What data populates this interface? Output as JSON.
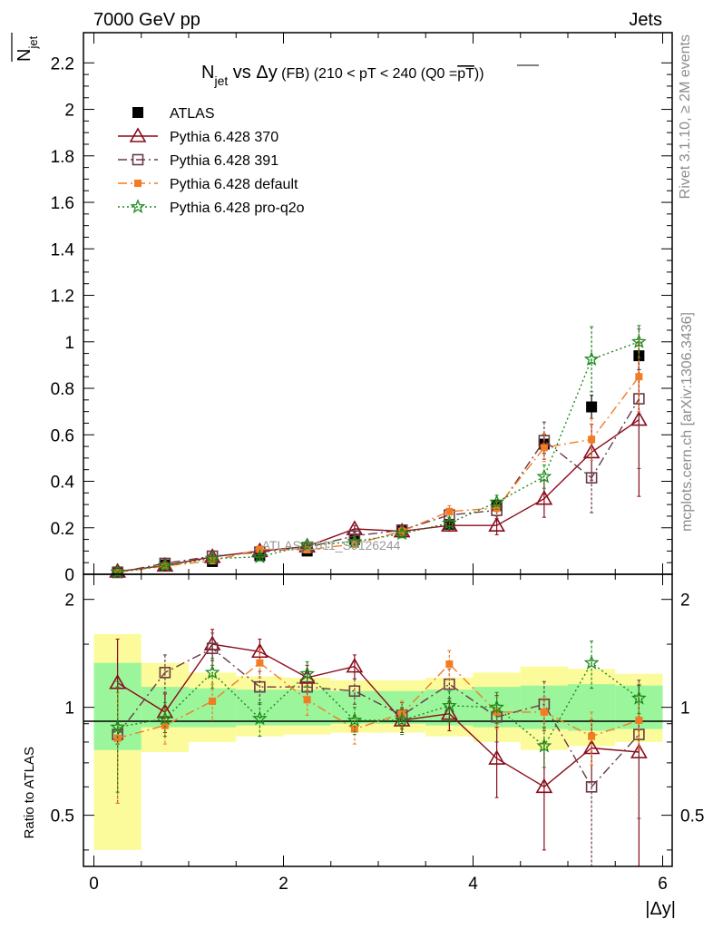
{
  "header": {
    "left": "7000 GeV pp",
    "right": "Jets"
  },
  "side_labels": {
    "rivet": "Rivet 3.1.10, ≥ 2M events",
    "mcplots": "mcplots.cern.ch [arXiv:1306.3436]"
  },
  "watermark": "ATLAS_2011_S9126244",
  "colors": {
    "ATLAS": "#000000",
    "p370": "#8b0a1c",
    "p391": "#6b3a46",
    "pdefault": "#f37b22",
    "pq2o": "#1a8a1a",
    "band_inner": "#9bf59b",
    "band_outer": "#fbfb9b"
  },
  "chart_data": [
    {
      "type": "scatter",
      "title": "N_jet vs Δy (FB) (210 < pT < 240 (Q0 = pT))",
      "ylabel": "N̄_jet",
      "xlabel": "|Δy|",
      "xlim": [
        0,
        6
      ],
      "ylim": [
        0,
        2.33
      ],
      "yticks": [
        0,
        0.2,
        0.4,
        0.6,
        0.8,
        1,
        1.2,
        1.4,
        1.6,
        1.8,
        2,
        2.2
      ],
      "yticklabels": [
        "0",
        "0.2",
        "0.4",
        "0.6",
        "0.8",
        "1",
        "1.2",
        "1.4",
        "1.6",
        "1.8",
        "2",
        "2.2"
      ],
      "legend_position": "top-left",
      "x": [
        0.25,
        0.75,
        1.25,
        1.75,
        2.25,
        2.75,
        3.25,
        3.75,
        4.25,
        4.75,
        5.25,
        5.75
      ],
      "series": [
        {
          "name": "ATLAS",
          "key": "ATLAS",
          "marker": "filled-square",
          "values": [
            0.01,
            0.04,
            0.055,
            0.08,
            0.1,
            0.15,
            0.19,
            0.215,
            0.295,
            0.56,
            0.72,
            0.94
          ],
          "err": [
            0.003,
            0.005,
            0.007,
            0.008,
            0.01,
            0.012,
            0.015,
            0.02,
            0.025,
            0.04,
            0.05,
            0.06
          ]
        },
        {
          "name": "Pythia 6.428 370",
          "key": "p370",
          "marker": "open-triangle",
          "dash": "solid",
          "values": [
            0.012,
            0.038,
            0.075,
            0.1,
            0.12,
            0.195,
            0.185,
            0.21,
            0.21,
            0.325,
            0.525,
            0.665
          ],
          "err": [
            0.004,
            0.006,
            0.008,
            0.01,
            0.012,
            0.015,
            0.018,
            0.025,
            0.04,
            0.08,
            0.12,
            0.33
          ]
        },
        {
          "name": "Pythia 6.428 391",
          "key": "p391",
          "marker": "open-square",
          "dash": "10,4,2,4",
          "values": [
            0.008,
            0.047,
            0.078,
            0.095,
            0.115,
            0.165,
            0.19,
            0.255,
            0.275,
            0.575,
            0.415,
            0.755
          ],
          "err": [
            0.003,
            0.006,
            0.008,
            0.01,
            0.012,
            0.015,
            0.018,
            0.025,
            0.035,
            0.08,
            0.15,
            0.3
          ]
        },
        {
          "name": "Pythia 6.428 default",
          "key": "pdefault",
          "marker": "filled-small-square",
          "dash": "10,4,2,4",
          "values": [
            0.008,
            0.035,
            0.058,
            0.107,
            0.105,
            0.13,
            0.185,
            0.27,
            0.285,
            0.545,
            0.58,
            0.85
          ],
          "err": [
            0.003,
            0.005,
            0.007,
            0.01,
            0.012,
            0.015,
            0.018,
            0.025,
            0.03,
            0.06,
            0.09,
            0.15
          ]
        },
        {
          "name": "Pythia 6.428 pro-q2o",
          "key": "pq2o",
          "marker": "star",
          "dash": "2,3",
          "values": [
            0.009,
            0.037,
            0.068,
            0.075,
            0.125,
            0.14,
            0.175,
            0.22,
            0.31,
            0.42,
            0.925,
            1.0
          ],
          "err": [
            0.003,
            0.005,
            0.007,
            0.008,
            0.012,
            0.015,
            0.018,
            0.025,
            0.03,
            0.05,
            0.14,
            0.07
          ]
        }
      ]
    },
    {
      "type": "scatter",
      "ylabel": "Ratio to ATLAS",
      "xlabel": "|Δy|",
      "xlim": [
        0,
        6
      ],
      "ylim": [
        0.36,
        2.35
      ],
      "yscale": "log",
      "yticks": [
        0.5,
        1,
        2
      ],
      "yticklabels": [
        "0.5",
        "1",
        "2"
      ],
      "xticks": [
        0,
        2,
        4,
        6
      ],
      "xticklabels": [
        "0",
        "2",
        "4",
        "6"
      ],
      "x": [
        0.25,
        0.75,
        1.25,
        1.75,
        2.25,
        2.75,
        3.25,
        3.75,
        4.25,
        4.75,
        5.25,
        5.75
      ],
      "bands": {
        "edges": [
          0,
          0.5,
          1,
          1.5,
          2,
          2.5,
          3,
          3.5,
          4,
          4.5,
          5,
          5.5,
          6
        ],
        "inner": [
          [
            0.76,
            1.33
          ],
          [
            0.88,
            1.14
          ],
          [
            0.88,
            1.13
          ],
          [
            0.89,
            1.12
          ],
          [
            0.89,
            1.12
          ],
          [
            0.9,
            1.11
          ],
          [
            0.9,
            1.11
          ],
          [
            0.89,
            1.12
          ],
          [
            0.88,
            1.14
          ],
          [
            0.87,
            1.15
          ],
          [
            0.86,
            1.16
          ],
          [
            0.87,
            1.15
          ]
        ],
        "outer": [
          [
            0.4,
            1.6
          ],
          [
            0.75,
            1.33
          ],
          [
            0.8,
            1.25
          ],
          [
            0.83,
            1.22
          ],
          [
            0.84,
            1.21
          ],
          [
            0.85,
            1.19
          ],
          [
            0.85,
            1.19
          ],
          [
            0.83,
            1.21
          ],
          [
            0.8,
            1.25
          ],
          [
            0.76,
            1.3
          ],
          [
            0.78,
            1.28
          ],
          [
            0.8,
            1.24
          ]
        ]
      },
      "series": [
        {
          "name": "Pythia 6.428 370",
          "key": "p370",
          "marker": "open-triangle",
          "dash": "solid",
          "values": [
            1.17,
            0.97,
            1.5,
            1.43,
            1.21,
            1.3,
            0.92,
            0.96,
            0.72,
            0.6,
            0.77,
            0.75
          ],
          "err": [
            0.38,
            0.12,
            0.15,
            0.12,
            0.1,
            0.1,
            0.07,
            0.1,
            0.16,
            0.2,
            0.15,
            0.4
          ]
        },
        {
          "name": "Pythia 6.428 391",
          "key": "p391",
          "marker": "open-square",
          "dash": "10,4,2,4",
          "values": [
            0.84,
            1.25,
            1.46,
            1.14,
            1.14,
            1.11,
            0.95,
            1.16,
            0.94,
            1.02,
            0.6,
            0.84
          ],
          "err": [
            0.3,
            0.15,
            0.15,
            0.12,
            0.1,
            0.09,
            0.08,
            0.12,
            0.14,
            0.16,
            0.25,
            0.35
          ]
        },
        {
          "name": "Pythia 6.428 default",
          "key": "pdefault",
          "marker": "filled-small-square",
          "dash": "10,4,2,4",
          "values": [
            0.82,
            0.89,
            1.04,
            1.33,
            1.05,
            0.87,
            0.96,
            1.32,
            0.97,
            0.97,
            0.83,
            0.92
          ],
          "err": [
            0.28,
            0.1,
            0.12,
            0.12,
            0.1,
            0.08,
            0.08,
            0.12,
            0.1,
            0.1,
            0.14,
            0.16
          ]
        },
        {
          "name": "Pythia 6.428 pro-q2o",
          "key": "pq2o",
          "marker": "star",
          "dash": "2,3",
          "values": [
            0.88,
            0.93,
            1.25,
            0.93,
            1.24,
            0.92,
            0.92,
            1.01,
            1.0,
            0.78,
            1.33,
            1.06
          ],
          "err": [
            0.3,
            0.1,
            0.12,
            0.1,
            0.1,
            0.08,
            0.08,
            0.1,
            0.1,
            0.1,
            0.2,
            0.1
          ]
        }
      ]
    }
  ]
}
